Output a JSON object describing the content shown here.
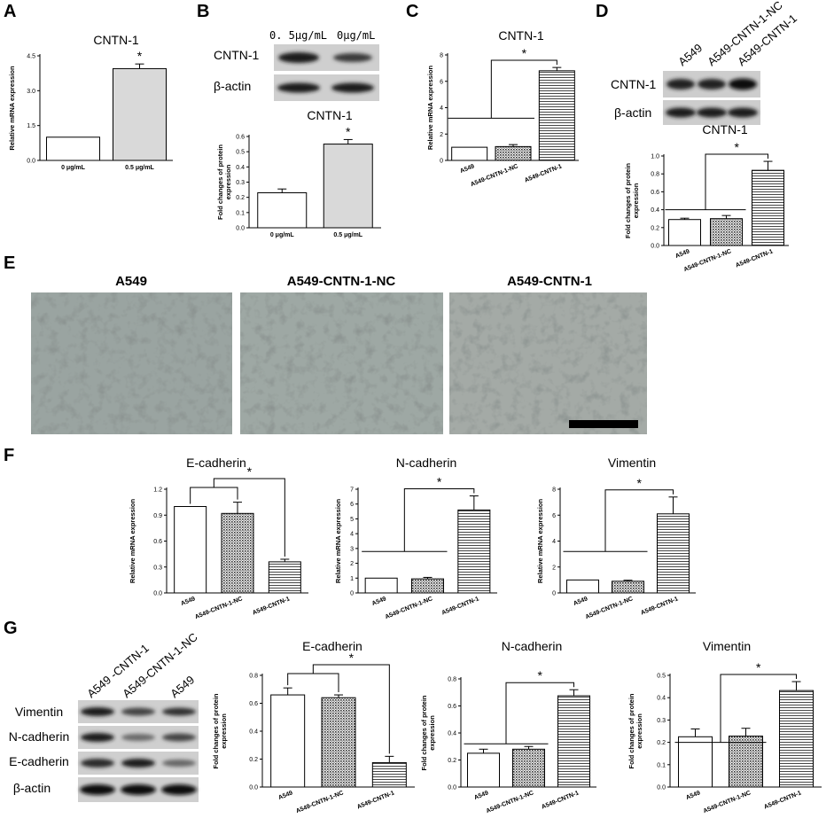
{
  "panel_labels": [
    "A",
    "B",
    "C",
    "D",
    "E",
    "F",
    "G"
  ],
  "panel_B_blot": {
    "lane_labels": [
      "0. 5μg/mL",
      "0μg/mL"
    ],
    "row_labels": [
      "CNTN-1",
      "β-actin"
    ]
  },
  "panel_D_blot": {
    "lane_labels": [
      "A549",
      "A549-CNTN-1-NC",
      "A549-CNTN-1"
    ],
    "row_labels": [
      "CNTN-1",
      "β-actin"
    ]
  },
  "panel_E": {
    "titles": [
      "A549",
      "A549-CNTN-1-NC",
      "A549-CNTN-1"
    ]
  },
  "panel_G_blot": {
    "lane_labels": [
      "A549 -CNTN-1",
      "A549-CNTN-1-NC",
      "A549"
    ],
    "row_labels": [
      "Vimentin",
      "N-cadherin",
      "E-cadherin",
      "β-actin"
    ]
  },
  "colors": {
    "ink": "#000000",
    "gray_fill": "#d9d9d9",
    "micro_bg": "#9aa4a1",
    "scalebar": "#000000"
  },
  "chart_data": [
    {
      "id": "A",
      "type": "bar",
      "title": "CNTN-1",
      "ylabel": "Relative mRNA expression",
      "categories": [
        "0 μg/mL",
        "0.5 μg/mL"
      ],
      "values": [
        1.0,
        3.95
      ],
      "errors": [
        0,
        0.2
      ],
      "ylim": [
        0,
        4.5
      ],
      "yticks": [
        0.0,
        1.5,
        3.0,
        4.5
      ],
      "tickFmt": 1,
      "fills": [
        "white",
        "gray"
      ],
      "rotate": false,
      "sig": [
        {
          "type": "star",
          "bar": 1,
          "label": "*"
        }
      ]
    },
    {
      "id": "B",
      "type": "bar",
      "title": "CNTN-1",
      "ylabel": "Fold changes of protein expression",
      "categories": [
        "0 μg/mL",
        "0.5 μg/mL"
      ],
      "values": [
        0.23,
        0.55
      ],
      "errors": [
        0.025,
        0.03
      ],
      "ylim": [
        0,
        0.6
      ],
      "yticks": [
        0.0,
        0.1,
        0.2,
        0.3,
        0.4,
        0.5,
        0.6
      ],
      "tickFmt": 1,
      "fills": [
        "white",
        "gray"
      ],
      "rotate": false,
      "sig": [
        {
          "type": "star",
          "bar": 1,
          "label": "*"
        }
      ]
    },
    {
      "id": "C",
      "type": "bar",
      "title": "CNTN-1",
      "ylabel": "Relative mRNA expression",
      "categories": [
        "A549",
        "A549-CNTN-1-NC",
        "A549-CNTN-1"
      ],
      "values": [
        1.0,
        1.05,
        6.8
      ],
      "errors": [
        0,
        0.15,
        0.25
      ],
      "ylim": [
        0,
        8
      ],
      "yticks": [
        0,
        2,
        4,
        6,
        8
      ],
      "tickFmt": 0,
      "fills": [
        "white",
        "dots",
        "hlines"
      ],
      "rotate": true,
      "sig": [
        {
          "type": "group",
          "bars": [
            0,
            1
          ],
          "to": 2,
          "label": "*"
        }
      ]
    },
    {
      "id": "D",
      "type": "bar",
      "title": "CNTN-1",
      "ylabel": "Fold changes of protein expression",
      "categories": [
        "A549",
        "A549-CNTN-1-NC",
        "A549-CNTN-1"
      ],
      "values": [
        0.29,
        0.3,
        0.84
      ],
      "errors": [
        0.015,
        0.035,
        0.1
      ],
      "ylim": [
        0,
        1.0
      ],
      "yticks": [
        0.0,
        0.2,
        0.4,
        0.6,
        0.8,
        1.0
      ],
      "tickFmt": 1,
      "fills": [
        "white",
        "dots",
        "hlines"
      ],
      "rotate": true,
      "sig": [
        {
          "type": "group",
          "bars": [
            0,
            1
          ],
          "to": 2,
          "label": "*"
        }
      ]
    },
    {
      "id": "F1",
      "type": "bar",
      "title": "E-cadherin",
      "ylabel": "Relative mRNA expression",
      "categories": [
        "A549",
        "A549-CNTN-1-NC",
        "A549-CNTN-1"
      ],
      "values": [
        1.0,
        0.92,
        0.36
      ],
      "errors": [
        0,
        0.13,
        0.03
      ],
      "ylim": [
        0,
        1.2
      ],
      "yticks": [
        0.0,
        0.3,
        0.6,
        0.9,
        1.2
      ],
      "tickFmt": 1,
      "fills": [
        "white",
        "dots",
        "hlines"
      ],
      "rotate": true,
      "sig": [
        {
          "type": "groupUp",
          "bars": [
            0,
            1
          ],
          "to": 2,
          "label": "*"
        }
      ]
    },
    {
      "id": "F2",
      "type": "bar",
      "title": "N-cadherin",
      "ylabel": "Relative mRNA expression",
      "categories": [
        "A549",
        "A549-CNTN-1-NC",
        "A549-CNTN-1"
      ],
      "values": [
        1.0,
        0.95,
        5.6
      ],
      "errors": [
        0,
        0.1,
        0.95
      ],
      "ylim": [
        0,
        7
      ],
      "yticks": [
        0,
        1,
        2,
        3,
        4,
        5,
        6,
        7
      ],
      "tickFmt": 0,
      "fills": [
        "white",
        "dots",
        "hlines"
      ],
      "rotate": true,
      "sig": [
        {
          "type": "group",
          "bars": [
            0,
            1
          ],
          "to": 2,
          "label": "*"
        }
      ]
    },
    {
      "id": "F3",
      "type": "bar",
      "title": "Vimentin",
      "ylabel": "Relative mRNA expression",
      "categories": [
        "A549",
        "A549-CNTN-1-NC",
        "A549-CNTN-1"
      ],
      "values": [
        1.0,
        0.9,
        6.1
      ],
      "errors": [
        0,
        0.08,
        1.3
      ],
      "ylim": [
        0,
        8
      ],
      "yticks": [
        0,
        2,
        4,
        6,
        8
      ],
      "tickFmt": 0,
      "fills": [
        "white",
        "dots",
        "hlines"
      ],
      "rotate": true,
      "sig": [
        {
          "type": "group",
          "bars": [
            0,
            1
          ],
          "to": 2,
          "label": "*"
        }
      ]
    },
    {
      "id": "G1",
      "type": "bar",
      "title": "E-cadherin",
      "ylabel": "Fold changes of protein expression",
      "categories": [
        "A549",
        "A549-CNTN-1-NC",
        "A549-CNTN-1"
      ],
      "values": [
        0.66,
        0.64,
        0.175
      ],
      "errors": [
        0.05,
        0.02,
        0.045
      ],
      "ylim": [
        0,
        0.8
      ],
      "yticks": [
        0.0,
        0.2,
        0.4,
        0.6,
        0.8
      ],
      "tickFmt": 1,
      "fills": [
        "white",
        "dots",
        "hlines"
      ],
      "rotate": true,
      "sig": [
        {
          "type": "groupUp",
          "bars": [
            0,
            1
          ],
          "to": 2,
          "label": "*"
        }
      ]
    },
    {
      "id": "G2",
      "type": "bar",
      "title": "N-cadherin",
      "ylabel": "Fold changes of protein expression",
      "categories": [
        "A549",
        "A549-CNTN-1-NC",
        "A549-CNTN-1"
      ],
      "values": [
        0.25,
        0.28,
        0.675
      ],
      "errors": [
        0.03,
        0.02,
        0.045
      ],
      "ylim": [
        0,
        0.8
      ],
      "yticks": [
        0.0,
        0.2,
        0.4,
        0.6,
        0.8
      ],
      "tickFmt": 1,
      "fills": [
        "white",
        "dots",
        "hlines"
      ],
      "rotate": true,
      "sig": [
        {
          "type": "group",
          "bars": [
            0,
            1
          ],
          "to": 2,
          "label": "*"
        }
      ]
    },
    {
      "id": "G3",
      "type": "bar",
      "title": "Vimentin",
      "ylabel": "Fold changes of protein expression",
      "categories": [
        "A549",
        "A549-CNTN-1-NC",
        "A549-CNTN-1"
      ],
      "values": [
        0.225,
        0.228,
        0.432
      ],
      "errors": [
        0.035,
        0.035,
        0.04
      ],
      "ylim": [
        0,
        0.5
      ],
      "yticks": [
        0.0,
        0.1,
        0.2,
        0.3,
        0.4,
        0.5
      ],
      "tickFmt": 1,
      "fills": [
        "white",
        "dots",
        "hlines"
      ],
      "rotate": true,
      "sig": [
        {
          "type": "group",
          "bars": [
            0,
            1
          ],
          "to": 2,
          "label": "*"
        }
      ]
    }
  ]
}
